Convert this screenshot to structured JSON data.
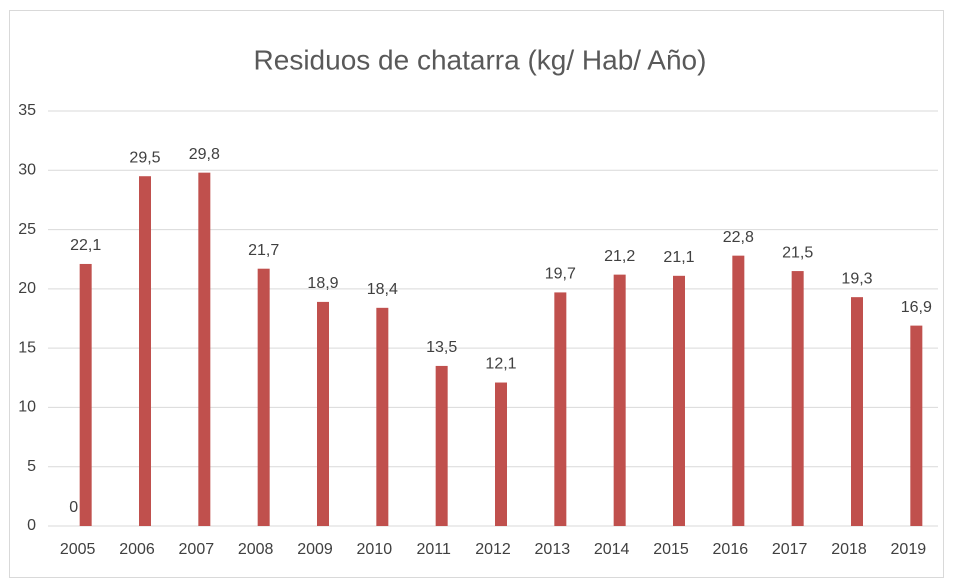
{
  "chart_data": {
    "type": "bar",
    "title": "Residuos de chatarra (kg/ Hab/ Año)",
    "categories": [
      "2005",
      "2006",
      "2007",
      "2008",
      "2009",
      "2010",
      "2011",
      "2012",
      "2013",
      "2014",
      "2015",
      "2016",
      "2017",
      "2018",
      "2019"
    ],
    "series": [
      {
        "color": "#4472c4",
        "values": [
          0,
          null,
          null,
          null,
          null,
          null,
          null,
          null,
          null,
          null,
          null,
          null,
          null,
          null,
          null
        ]
      },
      {
        "color": "#c0504d",
        "values": [
          22.1,
          29.5,
          29.8,
          21.7,
          18.9,
          18.4,
          13.5,
          12.1,
          19.7,
          21.2,
          21.1,
          22.8,
          21.5,
          19.3,
          16.9
        ],
        "value_labels": [
          "22,1",
          "29,5",
          "29,8",
          "21,7",
          "18,9",
          "18,4",
          "13,5",
          "12,1",
          "19,7",
          "21,2",
          "21,1",
          "22,8",
          "21,5",
          "19,3",
          "16,9"
        ]
      }
    ],
    "ylim": [
      0,
      35
    ],
    "yticks": [
      0,
      5,
      10,
      15,
      20,
      25,
      30,
      35
    ],
    "grid": true
  }
}
